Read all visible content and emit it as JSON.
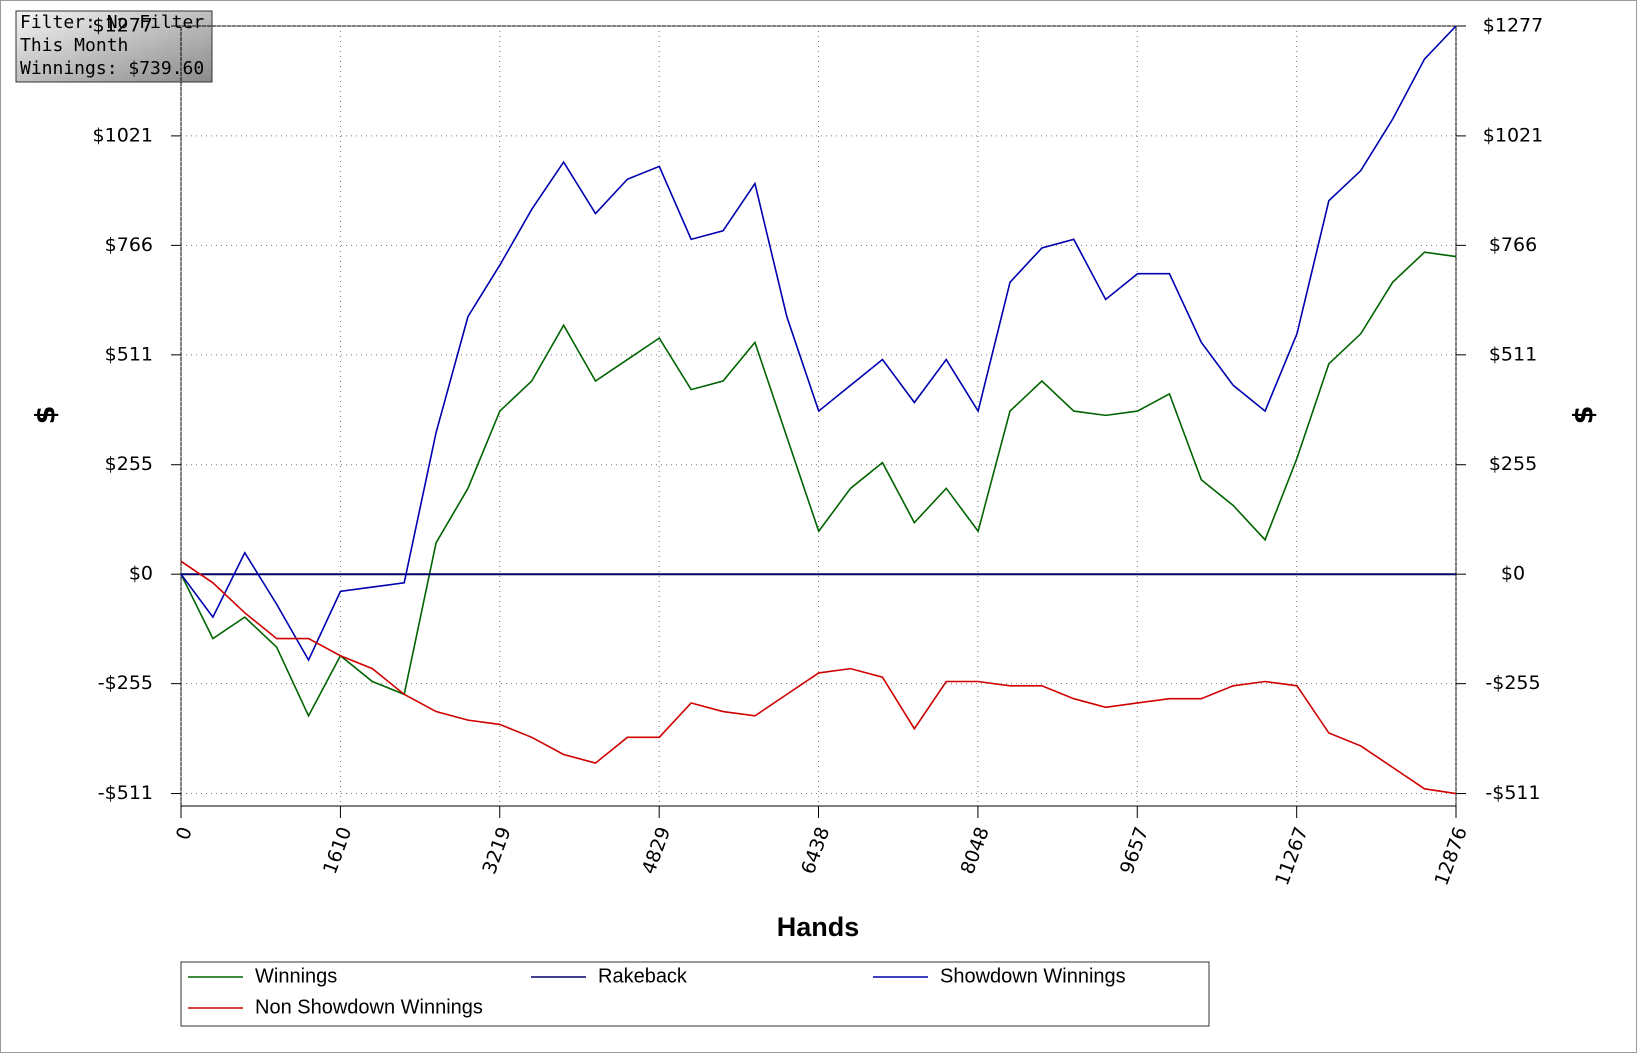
{
  "info": {
    "filter": "Filter: No Filter",
    "period": "This Month",
    "winnings": "Winnings: $739.60"
  },
  "chart_data": {
    "type": "line",
    "xlabel": "Hands",
    "ylabel": "$",
    "y2label": "$",
    "x": [
      0,
      322,
      644,
      966,
      1288,
      1610,
      1932,
      2254,
      2576,
      2898,
      3220,
      3542,
      3864,
      4186,
      4508,
      4830,
      5152,
      5474,
      5796,
      6118,
      6440,
      6762,
      7084,
      7406,
      7728,
      8050,
      8372,
      8694,
      9016,
      9338,
      9660,
      9982,
      10304,
      10626,
      10948,
      11270,
      11592,
      11914,
      12236,
      12558,
      12876
    ],
    "series": [
      {
        "name": "Winnings",
        "color": "#006400",
        "values": [
          0,
          -150,
          -100,
          -170,
          -330,
          -190,
          -250,
          -280,
          73,
          200,
          380,
          450,
          580,
          450,
          500,
          550,
          430,
          450,
          540,
          320,
          100,
          200,
          260,
          120,
          200,
          100,
          380,
          450,
          380,
          370,
          380,
          420,
          220,
          160,
          80,
          270,
          490,
          560,
          680,
          750,
          740
        ]
      },
      {
        "name": "Rakeback",
        "color": "#000066",
        "values": [
          0,
          0,
          0,
          0,
          0,
          0,
          0,
          0,
          0,
          0,
          0,
          0,
          0,
          0,
          0,
          0,
          0,
          0,
          0,
          0,
          0,
          0,
          0,
          0,
          0,
          0,
          0,
          0,
          0,
          0,
          0,
          0,
          0,
          0,
          0,
          0,
          0,
          0,
          0,
          0,
          0
        ]
      },
      {
        "name": "Showdown Winnings",
        "color": "#0000b0",
        "values": [
          0,
          -100,
          50,
          -70,
          -200,
          -40,
          -30,
          -20,
          330,
          600,
          720,
          850,
          960,
          840,
          920,
          950,
          780,
          800,
          910,
          600,
          380,
          440,
          500,
          400,
          500,
          380,
          680,
          760,
          780,
          640,
          700,
          700,
          540,
          440,
          380,
          560,
          870,
          940,
          1060,
          1200,
          1277
        ]
      },
      {
        "name": "Non Showdown Winnings",
        "color": "#d00000",
        "values": [
          30,
          -20,
          -90,
          -150,
          -150,
          -190,
          -220,
          -280,
          -320,
          -340,
          -350,
          -380,
          -420,
          -440,
          -380,
          -380,
          -300,
          -320,
          -330,
          -280,
          -230,
          -220,
          -240,
          -360,
          -250,
          -250,
          -260,
          -260,
          -290,
          -310,
          -300,
          -290,
          -290,
          -260,
          -250,
          -260,
          -370,
          -400,
          -450,
          -500,
          -511
        ]
      }
    ],
    "xlim": [
      0,
      12876
    ],
    "xticks": [
      0,
      1610,
      3219,
      4829,
      6438,
      8048,
      9657,
      11267,
      12876
    ],
    "ylim": [
      -540,
      1277
    ],
    "yticks": [
      {
        "value": -511,
        "label": "-$511"
      },
      {
        "value": -255,
        "label": "-$255"
      },
      {
        "value": 0,
        "label": "$0"
      },
      {
        "value": 255,
        "label": "$255"
      },
      {
        "value": 511,
        "label": "$511"
      },
      {
        "value": 766,
        "label": "$766"
      },
      {
        "value": 1021,
        "label": "$1021"
      },
      {
        "value": 1277,
        "label": "$1277"
      }
    ],
    "y2lim": [
      -540,
      1277
    ],
    "y2ticks": [
      {
        "value": -511,
        "label": "-$511"
      },
      {
        "value": -255,
        "label": "-$255"
      },
      {
        "value": 0,
        "label": "$0"
      },
      {
        "value": 255,
        "label": "$255"
      },
      {
        "value": 511,
        "label": "$511"
      },
      {
        "value": 766,
        "label": "$766"
      },
      {
        "value": 1021,
        "label": "$1021"
      },
      {
        "value": 1277,
        "label": "$1277"
      }
    ],
    "grid": true
  }
}
